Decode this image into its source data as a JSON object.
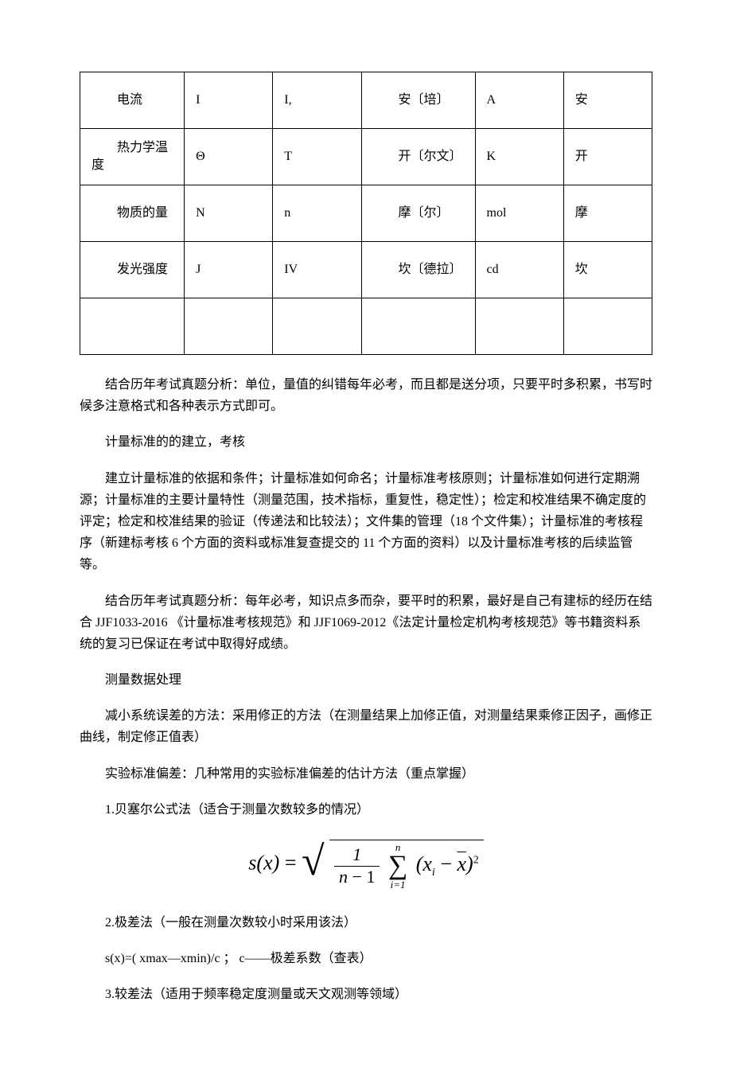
{
  "table": {
    "rows": [
      {
        "name": "电流",
        "dim": "I",
        "qty": "I,",
        "unit_zh": "安〔培〕",
        "unit_sym": "A",
        "unit_cn": "安"
      },
      {
        "name": "热力学温度",
        "dim": "Θ",
        "qty": "T",
        "unit_zh": "开〔尔文〕",
        "unit_sym": "K",
        "unit_cn": "开"
      },
      {
        "name": "物质的量",
        "dim": "N",
        "qty": "n",
        "unit_zh": "摩〔尔〕",
        "unit_sym": "mol",
        "unit_cn": "摩"
      },
      {
        "name": "发光强度",
        "dim": "J",
        "qty": "IV",
        "unit_zh": "坎〔德拉〕",
        "unit_sym": "cd",
        "unit_cn": "坎"
      }
    ]
  },
  "paragraphs": {
    "p1": "结合历年考试真题分析：单位，量值的纠错每年必考，而且都是送分项，只要平时多积累，书写时候多注意格式和各种表示方式即可。",
    "p2": "计量标准的的建立，考核",
    "p3": "建立计量标准的依据和条件；计量标准如何命名；计量标准考核原则；计量标准如何进行定期溯源；计量标准的主要计量特性（测量范围，技术指标，重复性，稳定性）；检定和校准结果不确定度的评定；检定和校准结果的验证（传递法和比较法）；文件集的管理（18 个文件集）；计量标准的考核程序（新建标考核 6 个方面的资料或标准复查提交的 11 个方面的资料）以及计量标准考核的后续监管等。",
    "p4": "结合历年考试真题分析：每年必考，知识点多而杂，要平时的积累，最好是自己有建标的经历在结合 JJF1033-2016 《计量标准考核规范》和 JJF1069-2012《法定计量检定机构考核规范》等书籍资料系统的复习已保证在考试中取得好成绩。",
    "p5": "测量数据处理",
    "p6": "减小系统误差的方法：采用修正的方法（在测量结果上加修正值，对测量结果乘修正因子，画修正曲线，制定修正值表）",
    "p7": "实验标准偏差：几种常用的实验标准偏差的估计方法（重点掌握）",
    "p8": "1.贝塞尔公式法（适合于测量次数较多的情况）",
    "p9": "2.极差法（一般在测量次数较小时采用该法）",
    "p10": "s(x)=( xmax—xmin)/c ；   c——极差系数（查表）",
    "p11": "3.较差法（适用于频率稳定度测量或天文观测等领域）"
  },
  "formula": {
    "lhs_s": "s",
    "lhs_x": "x",
    "frac_num": "1",
    "frac_den_a": "n",
    "frac_den_b": "− 1",
    "sum_top": "n",
    "sum_bot": "i=1",
    "term_xi_x": "x",
    "term_xi_i": "i",
    "term_xbar": "x",
    "exp": "2"
  },
  "style": {
    "body_font_size": 16,
    "formula_font_size": 26,
    "text_color": "#000000",
    "background_color": "#ffffff",
    "border_color": "#000000"
  }
}
